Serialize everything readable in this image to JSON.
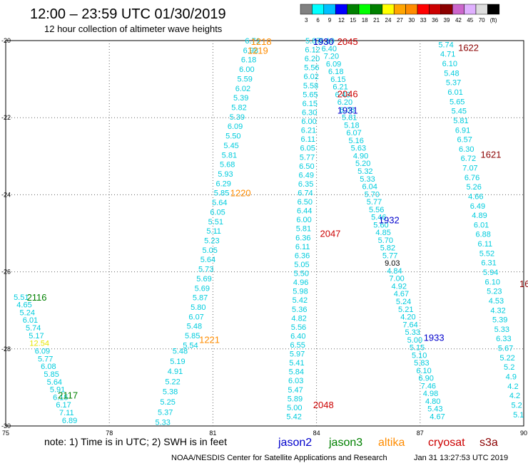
{
  "header": {
    "title": "12:00 – 23:59 UTC 01/30/2019",
    "subtitle": "12 hour collection of altimeter wave heights"
  },
  "colorbar": {
    "colors": [
      "#808080",
      "#00ffff",
      "#00bfff",
      "#0000ff",
      "#008000",
      "#00ff00",
      "#008000",
      "#ffff00",
      "#ffa500",
      "#ff8c00",
      "#ff0000",
      "#cc0000",
      "#8b0000",
      "#cc66cc",
      "#e0b0ff",
      "#dddddd",
      "#000000"
    ],
    "labels": [
      "3",
      "6",
      "9",
      "12",
      "15",
      "18",
      "21",
      "24",
      "27",
      "30",
      "33",
      "36",
      "39",
      "42",
      "45",
      "70",
      "(ft)"
    ]
  },
  "notes": {
    "note": "note:  1) Time is in UTC;  2) SWH is in feet",
    "footer_left": "NOAA/NESDIS Center for Satellite Applications and Research",
    "footer_right": "Jan 31 13:27:53 UTC 2019"
  },
  "legend": [
    {
      "name": "jason2",
      "color": "#0000cc"
    },
    {
      "name": "jason3",
      "color": "#008000"
    },
    {
      "name": "altika",
      "color": "#ff8c00"
    },
    {
      "name": "cryosat",
      "color": "#cc0000"
    },
    {
      "name": "s3a",
      "color": "#8b0000"
    }
  ],
  "chart_data": {
    "type": "scatter",
    "xlim": [
      75,
      90
    ],
    "ylim": [
      -30,
      -20
    ],
    "x_ticks": [
      "75",
      "78",
      "81",
      "84",
      "87",
      "90"
    ],
    "y_ticks": [
      "-20",
      "-22",
      "-24",
      "-26",
      "-28",
      "-30"
    ],
    "grid": true,
    "passes": [
      {
        "label": "1218",
        "color": "#ff8c00",
        "x": 82.4,
        "y": -20.02
      },
      {
        "label": "1219",
        "color": "#ff8c00",
        "x": 82.3,
        "y": -20.25
      },
      {
        "label": "1220",
        "color": "#ff8c00",
        "x": 81.8,
        "y": -23.95
      },
      {
        "label": "1221",
        "color": "#ff8c00",
        "x": 80.9,
        "y": -27.75
      },
      {
        "label": "1930",
        "color": "#0000cc",
        "x": 84.2,
        "y": -20.02
      },
      {
        "label": "1931",
        "color": "#0000cc",
        "x": 84.9,
        "y": -21.8
      },
      {
        "label": "1932",
        "color": "#0000cc",
        "x": 86.1,
        "y": -24.65
      },
      {
        "label": "1933",
        "color": "#0000cc",
        "x": 87.4,
        "y": -27.7
      },
      {
        "label": "2045",
        "color": "#cc0000",
        "x": 84.9,
        "y": -20.02
      },
      {
        "label": "2046",
        "color": "#cc0000",
        "x": 84.9,
        "y": -21.38
      },
      {
        "label": "2047",
        "color": "#cc0000",
        "x": 84.4,
        "y": -25.0
      },
      {
        "label": "2048",
        "color": "#cc0000",
        "x": 84.2,
        "y": -29.45
      },
      {
        "label": "1622",
        "color": "#8b0000",
        "x": 88.4,
        "y": -20.18
      },
      {
        "label": "1621",
        "color": "#8b0000",
        "x": 89.05,
        "y": -22.95
      },
      {
        "label": "2116",
        "color": "#008000",
        "x": 75.9,
        "y": -26.65
      },
      {
        "label": "2117",
        "color": "#008000",
        "x": 76.8,
        "y": -29.2
      }
    ],
    "tracks": [
      {
        "color": "#00ccdd",
        "x0": 82.15,
        "x1": 80.35,
        "y0": -20.0,
        "y1": -27.9,
        "values": [
          "6.71",
          "6.98",
          "6.18",
          "6.00",
          "5.59",
          "6.02",
          "5.39",
          "5.82",
          "5.39",
          "6.09",
          "5.50",
          "5.45",
          "5.81",
          "5.68",
          "5.93",
          "6.29",
          "5.85",
          "5.64",
          "6.05",
          "5.51",
          "5.11",
          "5.23",
          "5.05",
          "5.64",
          "5.73",
          "5.69",
          "5.69",
          "5.87",
          "5.80",
          "6.07",
          "5.48",
          "5.85",
          "5.54"
        ]
      },
      {
        "color": "#00ccdd",
        "x0": 80.05,
        "x1": 79.55,
        "y0": -28.05,
        "y1": -29.9,
        "values": [
          "5.48",
          "5.19",
          "4.91",
          "5.22",
          "5.38",
          "5.25",
          "5.37",
          "5.33"
        ]
      },
      {
        "color": "#00ccdd",
        "x0": 83.9,
        "x1": 83.35,
        "y0": -20.0,
        "y1": -29.75,
        "values": [
          "5.87",
          "6.12",
          "6.20",
          "5.56",
          "6.02",
          "5.58",
          "5.65",
          "6.15",
          "6.30",
          "6.00",
          "6.21",
          "6.11",
          "6.05",
          "5.77",
          "6.50",
          "6.49",
          "6.35",
          "6.74",
          "6.50",
          "6.44",
          "6.00",
          "5.81",
          "6.36",
          "6.11",
          "6.36",
          "5.05",
          "5.50",
          "4.96",
          "5.98",
          "5.42",
          "5.36",
          "4.82",
          "5.56",
          "6.40",
          "6.55",
          "5.97",
          "5.41",
          "5.84",
          "6.03",
          "5.47",
          "5.89",
          "5.00",
          "5.42"
        ]
      },
      {
        "color": "#00ccdd",
        "x0": 84.3,
        "x1": 87.5,
        "y0": -20.0,
        "y1": -29.75,
        "values": [
          "6.10",
          "6.40",
          "7.20",
          "6.09",
          "6.18",
          "6.15",
          "6.21",
          "6.43",
          "6.20",
          "6.06",
          "5.81",
          "5.18",
          "6.07",
          "5.16",
          "5.63",
          "4.90",
          "5.20",
          "5.32",
          "5.33",
          "6.04",
          "5.70",
          "5.77",
          "5.56",
          "5.46",
          "5.60",
          "4.85",
          "5.70",
          "5.82",
          "5.77",
          "9.03",
          "4.84",
          "7.00",
          "4.92",
          "4.67",
          "5.24",
          "5.21",
          "4.20",
          "7.64",
          "5.33",
          "5.00",
          "5.15",
          "5.10",
          "5.83",
          "6.10",
          "6.90",
          "7.46",
          "4.98",
          "4.80",
          "5.43",
          "4.67"
        ]
      },
      {
        "color": "#00ccdd",
        "x0": 87.75,
        "x1": 89.85,
        "y0": -20.1,
        "y1": -29.7,
        "values": [
          "5.74",
          "4.71",
          "6.10",
          "5.48",
          "5.37",
          "6.01",
          "5.65",
          "5.45",
          "5.81",
          "6.91",
          "6.57",
          "6.30",
          "6.72",
          "7.07",
          "6.76",
          "5.26",
          "4.66",
          "6.49",
          "4.89",
          "6.01",
          "6.88",
          "6.11",
          "5.52",
          "6.31",
          "5.94",
          "6.10",
          "5.23",
          "4.53",
          "4.32",
          "5.39",
          "5.33",
          "6.33",
          "5.67",
          "5.22",
          "5.2",
          "4.9",
          "4.2",
          "4.2",
          "5.2",
          "5.1"
        ]
      },
      {
        "color": "#00ccdd",
        "x0": 75.45,
        "x1": 76.85,
        "y0": -26.65,
        "y1": -29.85,
        "values": [
          "5.51",
          "4.65",
          "5.24",
          "6.01",
          "5.74",
          "5.17",
          "12.54",
          "6.09",
          "5.77",
          "6.08",
          "5.85",
          "5.64",
          "5.91",
          "6.15",
          "6.17",
          "7.11",
          "6.89"
        ]
      }
    ],
    "yellow_value": "12.54",
    "dark_value": "9.03",
    "edge_labels": [
      {
        "label": "16",
        "color": "#8b0000",
        "x": 89.9,
        "y": -26.3
      }
    ]
  }
}
